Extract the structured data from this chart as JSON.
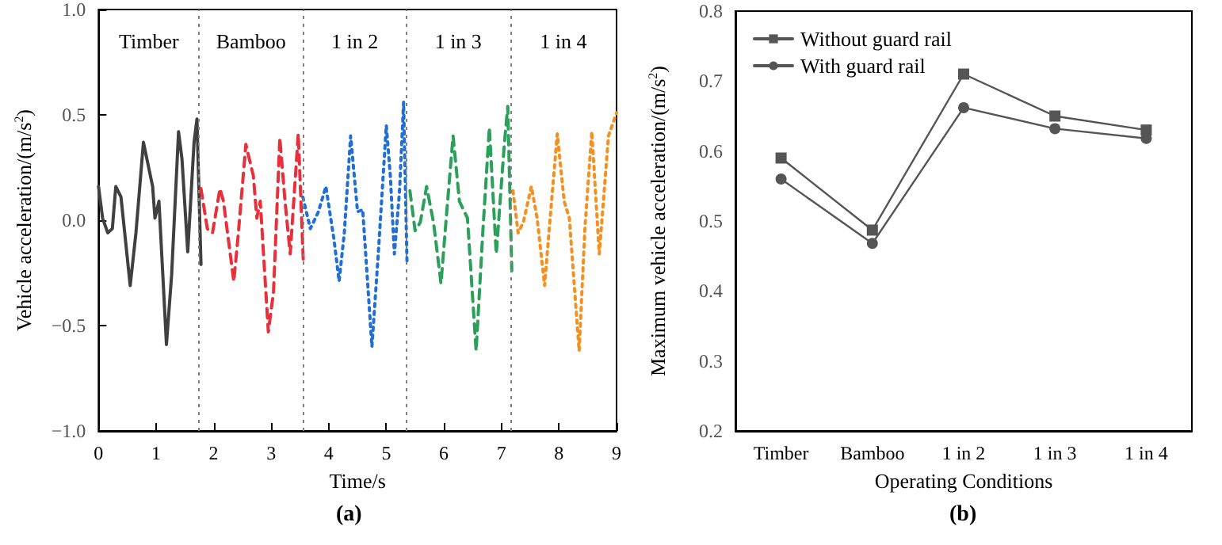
{
  "chart_data": [
    {
      "type": "line",
      "xlabel": "Time/s",
      "ylabel": "Vehicle acceleration/(m/s$^{2}$)",
      "annotations": [
        "Timber",
        "Bamboo",
        "1 in 2",
        "1 in 3",
        "1 in 4",
        "(a)"
      ],
      "series": [
        {
          "color": "#404040",
          "line_style": "solid",
          "x": [
            0,
            0.07,
            0.16,
            0.24,
            0.3,
            0.39,
            0.55,
            0.65,
            0.78,
            0.94,
            0.98,
            1.05,
            1.18,
            1.27,
            1.39,
            1.45,
            1.55,
            1.66,
            1.71,
            1.78
          ],
          "values": [
            0.16,
            0.01,
            -0.06,
            -0.04,
            0.16,
            0.11,
            -0.31,
            -0.06,
            0.37,
            0.16,
            0.01,
            0.09,
            -0.59,
            -0.26,
            0.42,
            0.29,
            -0.15,
            0.37,
            0.48,
            -0.21
          ]
        },
        {
          "color": "#e8303a",
          "line_style": "dashed",
          "x": [
            1.78,
            1.89,
            1.98,
            2.11,
            2.17,
            2.35,
            2.42,
            2.56,
            2.69,
            2.75,
            2.81,
            2.95,
            3.04,
            3.15,
            3.24,
            3.33,
            3.47,
            3.56
          ],
          "values": [
            0.15,
            -0.04,
            -0.06,
            0.15,
            0.09,
            -0.29,
            -0.09,
            0.36,
            0.21,
            0.01,
            0.09,
            -0.53,
            -0.34,
            0.39,
            0.09,
            -0.16,
            0.41,
            -0.21
          ]
        },
        {
          "color": "#1f6fd6",
          "line_style": "dotted",
          "x": [
            3.55,
            3.68,
            3.82,
            3.95,
            4.09,
            4.18,
            4.27,
            4.38,
            4.5,
            4.59,
            4.75,
            4.86,
            5,
            5.07,
            5.14,
            5.23,
            5.3,
            5.36
          ],
          "values": [
            0.11,
            -0.04,
            0.04,
            0.16,
            -0.09,
            -0.29,
            -0.06,
            0.4,
            0.04,
            0.05,
            -0.6,
            -0.16,
            0.45,
            0.21,
            -0.16,
            0.14,
            0.56,
            -0.21
          ]
        },
        {
          "color": "#2ca05a",
          "line_style": "dashed",
          "x": [
            5.41,
            5.5,
            5.59,
            5.7,
            5.82,
            5.95,
            6.05,
            6.16,
            6.27,
            6.41,
            6.56,
            6.68,
            6.79,
            6.91,
            7.05,
            7.11,
            7.18
          ],
          "values": [
            0.14,
            -0.05,
            -0.01,
            0.16,
            -0.01,
            -0.3,
            0.04,
            0.4,
            0.09,
            0.01,
            -0.62,
            -0.04,
            0.44,
            -0.16,
            0.36,
            0.54,
            -0.24
          ]
        },
        {
          "color": "#f5901e",
          "line_style": "dotted",
          "x": [
            7.2,
            7.29,
            7.38,
            7.52,
            7.62,
            7.75,
            7.84,
            7.97,
            8.09,
            8.18,
            8.35,
            8.45,
            8.57,
            8.7,
            8.86,
            9
          ],
          "values": [
            0.14,
            -0.06,
            -0.01,
            0.16,
            0.01,
            -0.31,
            -0.01,
            0.41,
            0.09,
            0.01,
            -0.62,
            -0.04,
            0.42,
            -0.16,
            0.4,
            0.51
          ]
        }
      ],
      "xlim": [
        0,
        9
      ],
      "xticks": [
        0,
        1,
        2,
        3,
        4,
        5,
        6,
        7,
        8,
        9
      ],
      "ylim": [
        -1,
        1
      ],
      "yticks": [
        {
          "value": -1,
          "label": "−1.0"
        },
        {
          "value": -0.5,
          "label": "−0.5"
        },
        {
          "value": 0,
          "label": "0.0"
        },
        {
          "value": 0.5,
          "label": "0.5"
        },
        {
          "value": 1,
          "label": "1.0"
        }
      ],
      "ref_lines": [
        {
          "axis": "x",
          "value": 1.75,
          "color": "#808080",
          "line_style": "dotted"
        },
        {
          "axis": "x",
          "value": 3.55,
          "color": "#808080",
          "line_style": "dotted"
        },
        {
          "axis": "x",
          "value": 5.35,
          "color": "#808080",
          "line_style": "dotted"
        },
        {
          "axis": "x",
          "value": 7.15,
          "color": "#808080",
          "line_style": "dotted"
        }
      ],
      "grid": false,
      "legend": false,
      "marker": "none"
    },
    {
      "type": "line",
      "xlabel": "Operating Conditions",
      "ylabel": "Maximum vehicle acceleration/(m/s$^{2}$)",
      "annotations": [
        "(b)"
      ],
      "categories": [
        "Timber",
        "Bamboo",
        "1 in 2",
        "1 in 3",
        "1 in 4"
      ],
      "series": [
        {
          "name": "Without guard rail",
          "color": "#555555",
          "marker": "square",
          "values": [
            0.59,
            0.487,
            0.71,
            0.65,
            0.63
          ]
        },
        {
          "name": "With guard rail",
          "color": "#555555",
          "marker": "circle",
          "values": [
            0.56,
            0.468,
            0.662,
            0.632,
            0.618
          ]
        }
      ],
      "ylim": [
        0.2,
        0.8
      ],
      "yticks": [
        {
          "value": 0.2,
          "label": "0.2"
        },
        {
          "value": 0.3,
          "label": "0.3"
        },
        {
          "value": 0.4,
          "label": "0.4"
        },
        {
          "value": 0.5,
          "label": "0.5"
        },
        {
          "value": 0.6,
          "label": "0.6"
        },
        {
          "value": 0.7,
          "label": "0.7"
        },
        {
          "value": 0.8,
          "label": "0.8"
        }
      ],
      "grid": false,
      "legend": "top left",
      "line_style": "solid"
    }
  ]
}
